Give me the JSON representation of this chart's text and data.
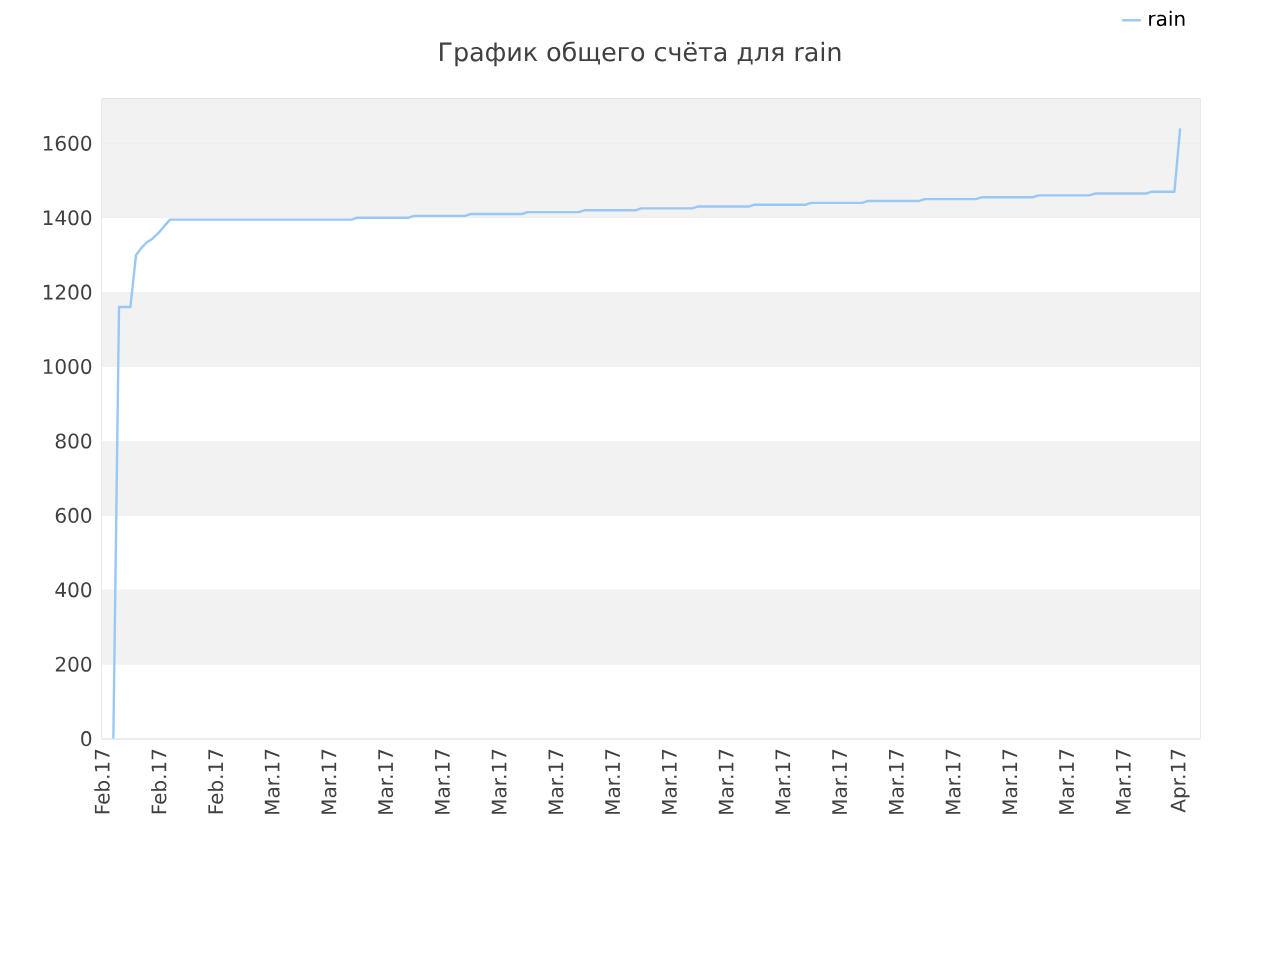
{
  "chart_data": {
    "type": "line",
    "title": "График общего счёта для rain",
    "categories": [
      "Feb.17",
      null,
      null,
      null,
      null,
      null,
      null,
      null,
      null,
      null,
      "Feb.17",
      null,
      null,
      null,
      null,
      null,
      null,
      null,
      null,
      null,
      "Feb.17",
      null,
      null,
      null,
      null,
      null,
      null,
      null,
      null,
      null,
      "Mar.17",
      null,
      null,
      null,
      null,
      null,
      null,
      null,
      null,
      null,
      "Mar.17",
      null,
      null,
      null,
      null,
      null,
      null,
      null,
      null,
      null,
      "Mar.17",
      null,
      null,
      null,
      null,
      null,
      null,
      null,
      null,
      null,
      "Mar.17",
      null,
      null,
      null,
      null,
      null,
      null,
      null,
      null,
      null,
      "Mar.17",
      null,
      null,
      null,
      null,
      null,
      null,
      null,
      null,
      null,
      "Mar.17",
      null,
      null,
      null,
      null,
      null,
      null,
      null,
      null,
      null,
      "Mar.17",
      null,
      null,
      null,
      null,
      null,
      null,
      null,
      null,
      null,
      "Mar.17",
      null,
      null,
      null,
      null,
      null,
      null,
      null,
      null,
      null,
      "Mar.17",
      null,
      null,
      null,
      null,
      null,
      null,
      null,
      null,
      null,
      "Mar.17",
      null,
      null,
      null,
      null,
      null,
      null,
      null,
      null,
      null,
      "Mar.17",
      null,
      null,
      null,
      null,
      null,
      null,
      null,
      null,
      null,
      "Mar.17",
      null,
      null,
      null,
      null,
      null,
      null,
      null,
      null,
      null,
      "Mar.17",
      null,
      null,
      null,
      null,
      null,
      null,
      null,
      null,
      null,
      "Mar.17",
      null,
      null,
      null,
      null,
      null,
      null,
      null,
      null,
      null,
      "Mar.17",
      null,
      null,
      null,
      null,
      null,
      null,
      null,
      null,
      null,
      "Mar.17",
      null,
      null,
      null,
      null,
      null,
      null,
      null,
      null,
      null,
      "Apr.17",
      null,
      null,
      null
    ],
    "series": [
      {
        "name": "rain",
        "color": "#99c8f5",
        "values": [
          null,
          null,
          0,
          1160,
          1160,
          1160,
          1300,
          1320,
          1335,
          1345,
          1360,
          1378,
          1395,
          1395,
          1395,
          1395,
          1395,
          1395,
          1395,
          1395,
          1395,
          1395,
          1395,
          1395,
          1395,
          1395,
          1395,
          1395,
          1395,
          1395,
          1395,
          1395,
          1395,
          1395,
          1395,
          1395,
          1395,
          1395,
          1395,
          1395,
          1395,
          1395,
          1395,
          1395,
          1395,
          1400,
          1400,
          1400,
          1400,
          1400,
          1400,
          1400,
          1400,
          1400,
          1400,
          1405,
          1405,
          1405,
          1405,
          1405,
          1405,
          1405,
          1405,
          1405,
          1405,
          1410,
          1410,
          1410,
          1410,
          1410,
          1410,
          1410,
          1410,
          1410,
          1410,
          1415,
          1415,
          1415,
          1415,
          1415,
          1415,
          1415,
          1415,
          1415,
          1415,
          1420,
          1420,
          1420,
          1420,
          1420,
          1420,
          1420,
          1420,
          1420,
          1420,
          1425,
          1425,
          1425,
          1425,
          1425,
          1425,
          1425,
          1425,
          1425,
          1425,
          1430,
          1430,
          1430,
          1430,
          1430,
          1430,
          1430,
          1430,
          1430,
          1430,
          1435,
          1435,
          1435,
          1435,
          1435,
          1435,
          1435,
          1435,
          1435,
          1435,
          1440,
          1440,
          1440,
          1440,
          1440,
          1440,
          1440,
          1440,
          1440,
          1440,
          1445,
          1445,
          1445,
          1445,
          1445,
          1445,
          1445,
          1445,
          1445,
          1445,
          1450,
          1450,
          1450,
          1450,
          1450,
          1450,
          1450,
          1450,
          1450,
          1450,
          1455,
          1455,
          1455,
          1455,
          1455,
          1455,
          1455,
          1455,
          1455,
          1455,
          1460,
          1460,
          1460,
          1460,
          1460,
          1460,
          1460,
          1460,
          1460,
          1460,
          1465,
          1465,
          1465,
          1465,
          1465,
          1465,
          1465,
          1465,
          1465,
          1465,
          1470,
          1470,
          1470,
          1470,
          1470,
          1640,
          null,
          null,
          null
        ]
      }
    ],
    "ylim": [
      0,
      1720
    ],
    "yticks": [
      0,
      200,
      400,
      600,
      800,
      1000,
      1200,
      1400,
      1600
    ],
    "grid": "y",
    "legend": "top right",
    "marker": "none",
    "line_style": "solid"
  }
}
